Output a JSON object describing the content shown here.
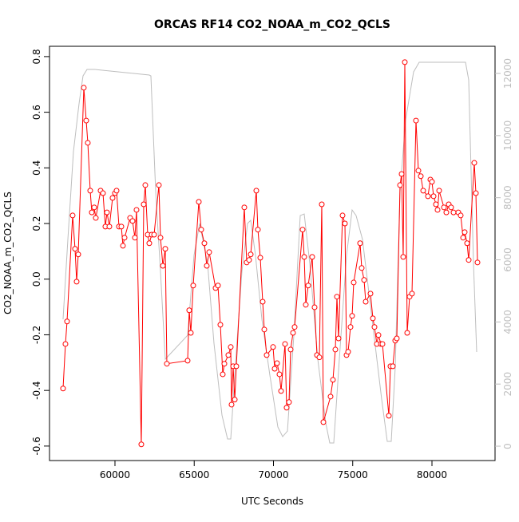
{
  "chart_data": {
    "type": "line",
    "title": "ORCAS RF14 CO2_NOAA_m_CO2_QCLS",
    "x_label": "UTC Seconds",
    "y_label": "CO2_NOAA_m_CO2_QCLS",
    "xlim": [
      55870,
      83980
    ],
    "ylim": [
      -0.652,
      0.837
    ],
    "y2lim": [
      -462,
      12874
    ],
    "xticks": [
      60000,
      65000,
      70000,
      75000,
      80000
    ],
    "yticks": [
      -0.6,
      -0.4,
      -0.2,
      {
        "value": 0,
        "label": "0.0"
      },
      0.2,
      0.4,
      0.6,
      0.8
    ],
    "y2ticks": [
      0,
      2000,
      4000,
      6000,
      8000,
      10000,
      12000
    ],
    "series": [
      {
        "color": "#bebebe",
        "axis": "y2",
        "markers": false,
        "x": [
          56725,
          57028,
          57380,
          57733,
          57985,
          58237,
          58741,
          62166,
          62267,
          62569,
          62871,
          63174,
          64584,
          64987,
          65340,
          65844,
          66247,
          66751,
          67103,
          67305,
          67557,
          68010,
          68363,
          68564,
          68866,
          69270,
          69773,
          70277,
          70579,
          70882,
          71285,
          71688,
          71940,
          72292,
          72796,
          73300,
          73552,
          73804,
          74156,
          74610,
          74962,
          75214,
          75617,
          76222,
          76826,
          77179,
          77431,
          77683,
          77985,
          78338,
          78841,
          79194,
          82116,
          82317,
          82620,
          82821
        ],
        "values": [
          4085,
          6655,
          9481,
          11023,
          11922,
          12128,
          12128,
          11948,
          11922,
          8196,
          5627,
          2801,
          3571,
          6141,
          7169,
          5884,
          3314,
          1002,
          231,
          231,
          2287,
          5627,
          7169,
          7271,
          6141,
          4085,
          2287,
          617,
          308,
          488,
          3571,
          7425,
          7477,
          5884,
          2801,
          745,
          103,
          103,
          2801,
          6141,
          7605,
          7425,
          6655,
          4085,
          1516,
          154,
          154,
          2544,
          8196,
          10509,
          12050,
          12359,
          12359,
          11794,
          5884,
          3032
        ]
      },
      {
        "color": "#ff0000",
        "axis": "y",
        "markers": true,
        "x": [
          56725,
          56876,
          56977,
          57330,
          57481,
          57582,
          57683,
          58035,
          58186,
          58287,
          58438,
          58539,
          58690,
          58791,
          59093,
          59244,
          59395,
          59496,
          59647,
          59849,
          60000,
          60101,
          60252,
          60403,
          60504,
          60605,
          60957,
          61108,
          61259,
          61360,
          61662,
          61814,
          61914,
          62065,
          62166,
          62317,
          62469,
          62771,
          62872,
          63023,
          63174,
          63275,
          64584,
          64685,
          64786,
          64937,
          65290,
          65441,
          65642,
          65793,
          65945,
          66348,
          66499,
          66650,
          66801,
          66902,
          67154,
          67305,
          67355,
          67456,
          67557,
          67657,
          68161,
          68312,
          68463,
          68564,
          68917,
          69018,
          69169,
          69320,
          69421,
          69572,
          69975,
          70076,
          70227,
          70378,
          70479,
          70730,
          70831,
          70982,
          71083,
          71234,
          71335,
          71839,
          71940,
          72040,
          72191,
          72443,
          72594,
          72745,
          72897,
          73048,
          73149,
          73602,
          73753,
          73904,
          74005,
          74106,
          74358,
          74509,
          74610,
          74710,
          74861,
          74962,
          75063,
          75466,
          75567,
          75718,
          75819,
          76121,
          76272,
          76373,
          76524,
          76625,
          76776,
          76877,
          77280,
          77380,
          77532,
          77683,
          77783,
          77985,
          78086,
          78186,
          78287,
          78438,
          78589,
          78740,
          78992,
          79144,
          79295,
          79446,
          79748,
          79899,
          80000,
          80101,
          80252,
          80353,
          80453,
          80756,
          80907,
          81058,
          81209,
          81360,
          81662,
          81814,
          81965,
          82065,
          82217,
          82317,
          82670,
          82771,
          82872
        ],
        "values": [
          -0.393,
          -0.233,
          -0.152,
          0.229,
          0.109,
          -0.009,
          0.089,
          0.688,
          0.57,
          0.49,
          0.318,
          0.24,
          0.258,
          0.22,
          0.318,
          0.309,
          0.189,
          0.24,
          0.189,
          0.292,
          0.309,
          0.318,
          0.189,
          0.189,
          0.12,
          0.149,
          0.22,
          0.209,
          0.149,
          0.249,
          -0.594,
          0.269,
          0.338,
          0.16,
          0.129,
          0.16,
          0.16,
          0.338,
          0.149,
          0.048,
          0.109,
          -0.304,
          -0.293,
          -0.112,
          -0.193,
          -0.023,
          0.278,
          0.178,
          0.129,
          0.048,
          0.097,
          -0.032,
          -0.023,
          -0.164,
          -0.342,
          -0.304,
          -0.273,
          -0.244,
          -0.451,
          -0.313,
          -0.433,
          -0.313,
          0.258,
          0.06,
          0.069,
          0.089,
          0.318,
          0.178,
          0.077,
          -0.081,
          -0.181,
          -0.273,
          -0.244,
          -0.322,
          -0.302,
          -0.342,
          -0.402,
          -0.233,
          -0.462,
          -0.442,
          -0.253,
          -0.193,
          -0.172,
          0.178,
          0.08,
          -0.092,
          -0.023,
          0.08,
          -0.101,
          -0.273,
          -0.281,
          0.269,
          -0.514,
          -0.422,
          -0.362,
          -0.253,
          -0.063,
          -0.213,
          0.229,
          0.2,
          -0.273,
          -0.261,
          -0.172,
          -0.132,
          -0.012,
          0.129,
          0.04,
          -0.003,
          -0.081,
          -0.052,
          -0.141,
          -0.172,
          -0.233,
          -0.201,
          -0.233,
          -0.233,
          -0.491,
          -0.313,
          -0.313,
          -0.221,
          -0.213,
          0.338,
          0.378,
          0.08,
          0.78,
          -0.193,
          -0.063,
          -0.052,
          0.57,
          0.39,
          0.37,
          0.318,
          0.298,
          0.358,
          0.35,
          0.298,
          0.269,
          0.249,
          0.318,
          0.258,
          0.24,
          0.269,
          0.258,
          0.24,
          0.24,
          0.229,
          0.149,
          0.169,
          0.129,
          0.069,
          0.418,
          0.309,
          0.06
        ]
      }
    ]
  }
}
